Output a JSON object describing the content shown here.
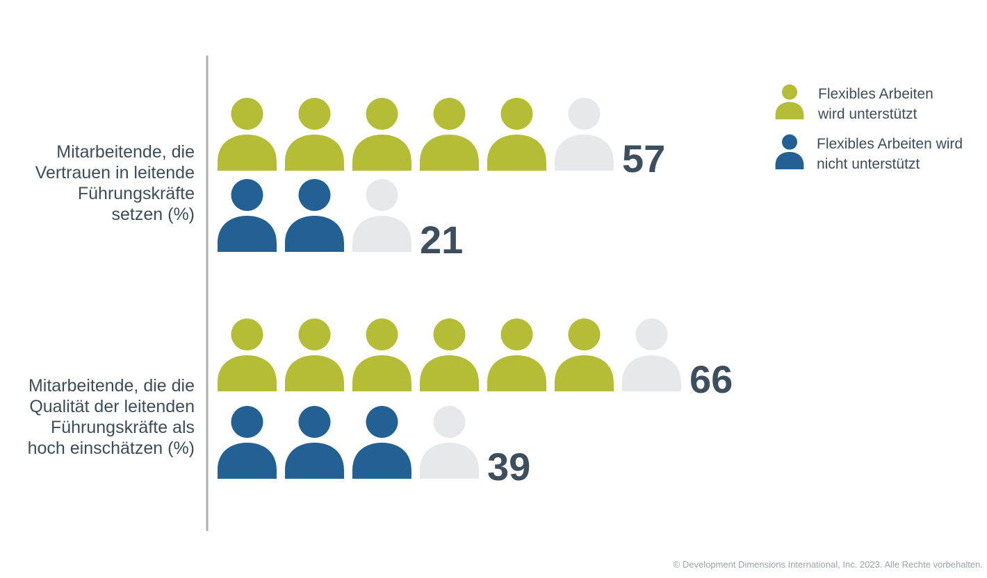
{
  "chart_data": {
    "type": "bar",
    "icon": "person-icon",
    "unit_per_icon": 10,
    "categories": [
      "Mitarbeitende, die\nVertrauen in leitende\nFührungskräfte\nsetzen (%)",
      "Mitarbeitende, die die\nQualität der leitenden\nFührungskräfte als\nhoch einschätzen (%)"
    ],
    "series": [
      {
        "name": "Flexibles Arbeiten\nwird unterstützt",
        "values": [
          57,
          66
        ]
      },
      {
        "name": "Flexibles Arbeiten wird\nnicht unterstützt",
        "values": [
          21,
          39
        ]
      }
    ],
    "legend": "top-right",
    "colors": {
      "supported": "#b4bd35",
      "not_supported": "#236093",
      "empty": "#e6e8eb",
      "axis": "#a9aeb2"
    }
  },
  "footer": {
    "copyright": "© Development Dimensions International, Inc. 2023. Alle Rechte vorbehalten."
  }
}
